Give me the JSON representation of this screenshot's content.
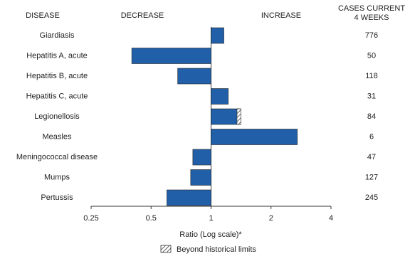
{
  "chart_data": {
    "type": "bar",
    "orientation": "horizontal",
    "header_left": "DISEASE",
    "header_decrease": "DECREASE",
    "header_increase": "INCREASE",
    "header_cases": [
      "CASES CURRENT",
      "4 WEEKS"
    ],
    "categories": [
      "Giardiasis",
      "Hepatitis A, acute",
      "Hepatitis B, acute",
      "Hepatitis C, acute",
      "Legionellosis",
      "Measles",
      "Meningococcal disease",
      "Mumps",
      "Pertussis"
    ],
    "values": [
      1.16,
      0.4,
      0.68,
      1.22,
      1.41,
      2.71,
      0.81,
      0.79,
      0.6
    ],
    "historical_limits": [
      null,
      null,
      null,
      null,
      1.35,
      null,
      null,
      null,
      null
    ],
    "cases": [
      776,
      50,
      118,
      31,
      84,
      6,
      47,
      127,
      245
    ],
    "color": "#2160a8",
    "xscale": "log",
    "xlim": [
      0.25,
      4
    ],
    "xticks": [
      0.25,
      0.5,
      1,
      2,
      4
    ],
    "xlabel": "Ratio (Log scale)*",
    "legend_label": "Beyond historical limits"
  }
}
